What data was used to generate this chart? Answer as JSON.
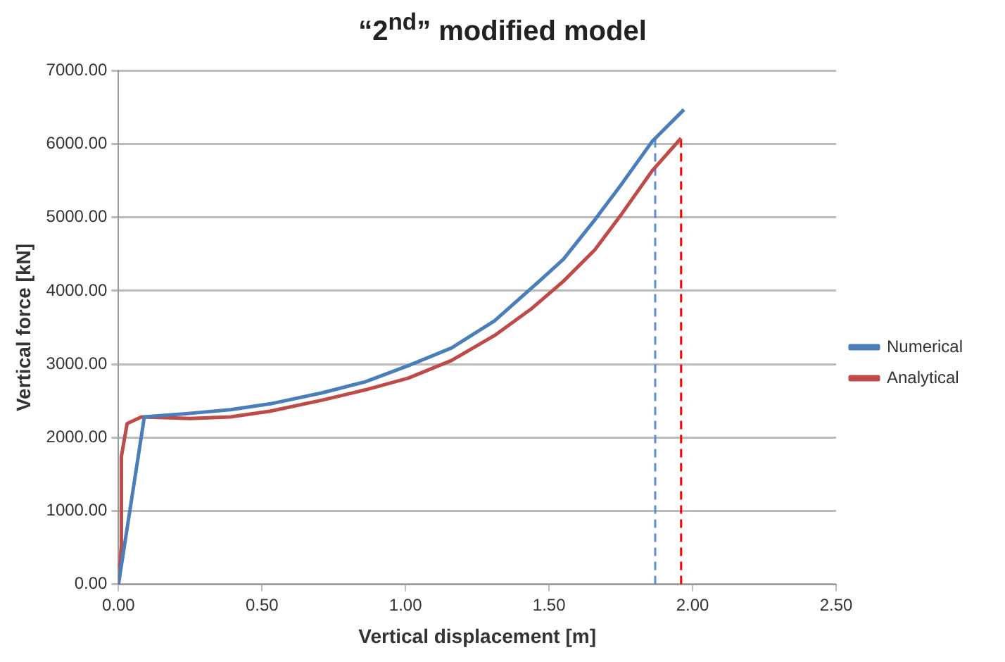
{
  "chart_data": {
    "type": "line",
    "title": "“2$^{nd}$”  modified model",
    "xlabel": "Vertical displacement [m]",
    "ylabel": "Vertical force [kN]",
    "xlim": [
      0,
      2.5
    ],
    "xticks": [
      {
        "value": 0,
        "label": "0.00"
      },
      {
        "value": 0.5,
        "label": "0.50"
      },
      {
        "value": 1,
        "label": "1.00"
      },
      {
        "value": 1.5,
        "label": "1.50"
      },
      {
        "value": 2,
        "label": "2.00"
      },
      {
        "value": 2.5,
        "label": "2.50"
      }
    ],
    "ylim": [
      0,
      7000
    ],
    "yticks": [
      {
        "value": 0,
        "label": "0.00"
      },
      {
        "value": 1000,
        "label": "1000.00"
      },
      {
        "value": 2000,
        "label": "2000.00"
      },
      {
        "value": 3000,
        "label": "3000.00"
      },
      {
        "value": 4000,
        "label": "4000.00"
      },
      {
        "value": 5000,
        "label": "5000.00"
      },
      {
        "value": 6000,
        "label": "6000.00"
      },
      {
        "value": 7000,
        "label": "7000.00"
      }
    ],
    "grid": "y",
    "legend": "right",
    "marker": "none",
    "line_style": "solid",
    "series": [
      {
        "name": "Numerical",
        "color": "#4a7ebb",
        "x": [
          0,
          0.09,
          0.25,
          0.39,
          0.53,
          0.71,
          0.86,
          1.01,
          1.16,
          1.31,
          1.44,
          1.55,
          1.66,
          1.75,
          1.86,
          1.97
        ],
        "values": [
          0,
          2280,
          2330,
          2380,
          2460,
          2610,
          2760,
          2980,
          3220,
          3590,
          4040,
          4430,
          4970,
          5440,
          6040,
          6470
        ]
      },
      {
        "name": "Analytical",
        "color": "#be4b48",
        "x": [
          0,
          0.01,
          0.01,
          0.03,
          0.08,
          0.25,
          0.39,
          0.53,
          0.71,
          0.86,
          1.01,
          1.16,
          1.31,
          1.44,
          1.55,
          1.66,
          1.75,
          1.86,
          1.96
        ],
        "values": [
          0,
          530,
          1740,
          2190,
          2280,
          2260,
          2280,
          2360,
          2510,
          2650,
          2810,
          3050,
          3390,
          3760,
          4130,
          4560,
          5030,
          5640,
          6080
        ]
      },
      {
        "color": "#5b8fd9",
        "line_style": "dashed",
        "x": [
          1.87,
          1.87
        ],
        "values": [
          0,
          6080
        ]
      },
      {
        "color": "#ff0000",
        "line_style": "dashed",
        "x": [
          1.96,
          1.96
        ],
        "values": [
          0,
          6080
        ]
      }
    ]
  }
}
